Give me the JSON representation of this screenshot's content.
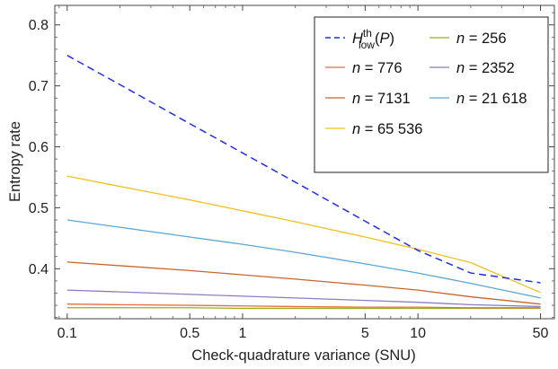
{
  "chart_data": {
    "type": "line",
    "xlabel": "Check-quadrature variance (SNU)",
    "ylabel": "Entropy rate",
    "xscale": "log",
    "xlim": [
      0.085,
      60
    ],
    "ylim": [
      0.318,
      0.832
    ],
    "x_ticks": [
      {
        "value": 0.1,
        "label": "0.1"
      },
      {
        "value": 0.5,
        "label": "0.5"
      },
      {
        "value": 1,
        "label": "1"
      },
      {
        "value": 5,
        "label": "5"
      },
      {
        "value": 10,
        "label": "10"
      },
      {
        "value": 50,
        "label": "50"
      }
    ],
    "y_ticks": [
      {
        "value": 0.4,
        "label": "0.4"
      },
      {
        "value": 0.5,
        "label": "0.5"
      },
      {
        "value": 0.6,
        "label": "0.6"
      },
      {
        "value": 0.7,
        "label": "0.7"
      },
      {
        "value": 0.8,
        "label": "0.8"
      }
    ],
    "legend_position": "top-right",
    "grid": false,
    "x": [
      0.1,
      0.2,
      0.5,
      1,
      2,
      5,
      10,
      20,
      50
    ],
    "series": [
      {
        "name": "H_low^th(P)",
        "legend_parts": {
          "base": "H",
          "sup": "th",
          "sub": "low",
          "arg": "(P)"
        },
        "color": "#1f2fe6",
        "dash": "8,5",
        "values": [
          0.75,
          0.702,
          0.638,
          0.59,
          0.542,
          0.478,
          0.43,
          0.393,
          0.377
        ]
      },
      {
        "name": "n = 256",
        "color": "#9aae1f",
        "values": [
          0.336,
          0.336,
          0.336,
          0.335,
          0.335,
          0.335,
          0.335,
          0.335,
          0.335
        ]
      },
      {
        "name": "n = 776",
        "color": "#e0723a",
        "values": [
          0.342,
          0.341,
          0.34,
          0.339,
          0.338,
          0.337,
          0.337,
          0.336,
          0.336
        ]
      },
      {
        "name": "n = 2352",
        "color": "#8e7cc3",
        "values": [
          0.365,
          0.362,
          0.358,
          0.355,
          0.352,
          0.348,
          0.345,
          0.341,
          0.338
        ]
      },
      {
        "name": "n = 7131",
        "color": "#c9652a",
        "values": [
          0.411,
          0.405,
          0.397,
          0.39,
          0.383,
          0.373,
          0.365,
          0.354,
          0.342
        ]
      },
      {
        "name": "n = 21 618",
        "color": "#5ca6d4",
        "values": [
          0.48,
          0.468,
          0.452,
          0.44,
          0.427,
          0.408,
          0.393,
          0.376,
          0.352
        ]
      },
      {
        "name": "n = 65 536",
        "color": "#f2c01c",
        "values": [
          0.552,
          0.535,
          0.513,
          0.495,
          0.477,
          0.452,
          0.432,
          0.41,
          0.361
        ]
      }
    ]
  }
}
